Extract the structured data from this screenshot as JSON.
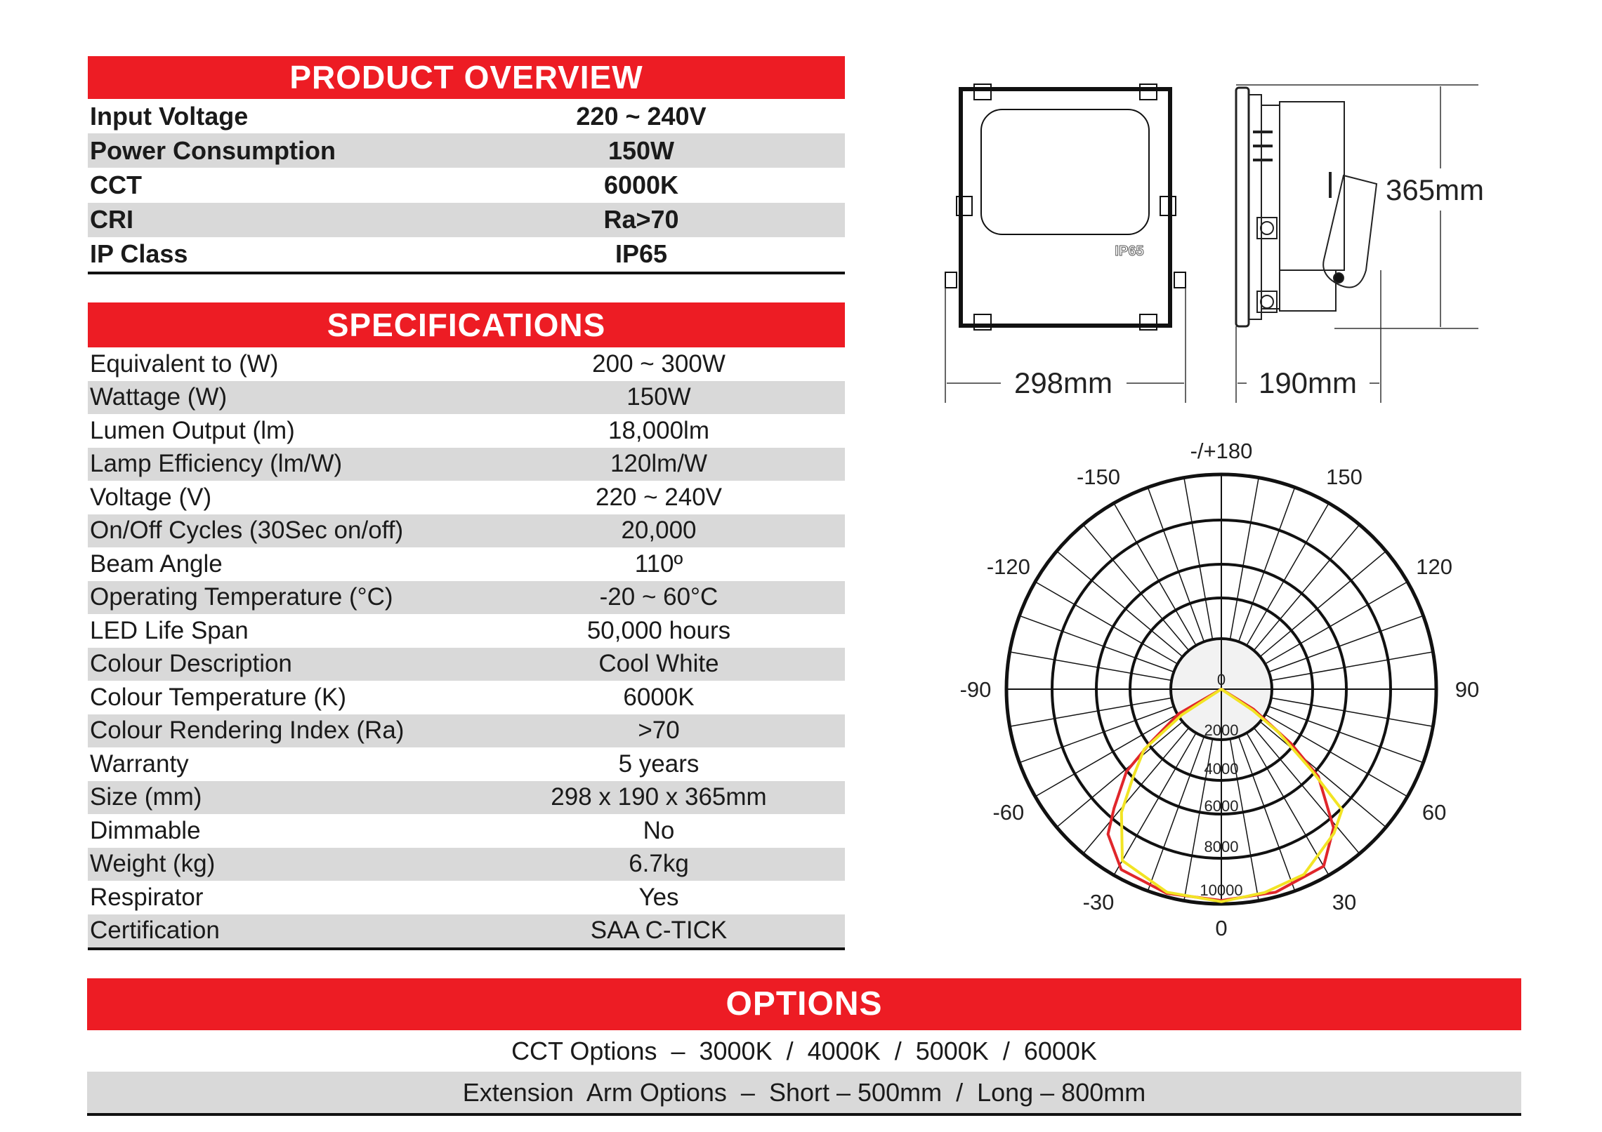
{
  "overview": {
    "title": "PRODUCT OVERVIEW",
    "rows": [
      {
        "label": "Input Voltage",
        "value": "220 ~ 240V"
      },
      {
        "label": "Power Consumption",
        "value": "150W"
      },
      {
        "label": "CCT",
        "value": "6000K"
      },
      {
        "label": "CRI",
        "value": "Ra>70"
      },
      {
        "label": "IP Class",
        "value": "IP65"
      }
    ]
  },
  "specifications": {
    "title": "SPECIFICATIONS",
    "rows": [
      {
        "label": "Equivalent to (W)",
        "value": "200 ~ 300W"
      },
      {
        "label": "Wattage (W)",
        "value": "150W"
      },
      {
        "label": "Lumen Output (lm)",
        "value": "18,000lm"
      },
      {
        "label": "Lamp Efficiency (lm/W)",
        "value": "120lm/W"
      },
      {
        "label": "Voltage (V)",
        "value": "220 ~ 240V"
      },
      {
        "label": "On/Off Cycles (30Sec on/off)",
        "value": "20,000"
      },
      {
        "label": "Beam Angle",
        "value": "110º"
      },
      {
        "label": "Operating Temperature (°C)",
        "value": "-20 ~ 60°C"
      },
      {
        "label": "LED Life Span",
        "value": "50,000 hours"
      },
      {
        "label": "Colour Description",
        "value": "Cool White"
      },
      {
        "label": "Colour Temperature (K)",
        "value": "6000K"
      },
      {
        "label": "Colour Rendering Index (Ra)",
        "value": ">70"
      },
      {
        "label": "Warranty",
        "value": "5 years"
      },
      {
        "label": "Size (mm)",
        "value": "298 x 190 x 365mm"
      },
      {
        "label": "Dimmable",
        "value": "No"
      },
      {
        "label": "Weight (kg)",
        "value": "6.7kg"
      },
      {
        "label": "Respirator",
        "value": "Yes"
      },
      {
        "label": "Certification",
        "value": "SAA  C-TICK"
      }
    ]
  },
  "options": {
    "title": "OPTIONS",
    "rows": [
      "CCT Options  –  3000K  /  4000K  /  5000K  /  6000K",
      "Extension  Arm Options  –  Short – 500mm  /  Long – 800mm"
    ]
  },
  "drawing": {
    "width": "298mm",
    "depth": "190mm",
    "height": "365mm",
    "badge": "IP65"
  },
  "colors": {
    "accent": "#ed1c24",
    "row_alt": "#d9d9d9",
    "curve_red": "#e0262b",
    "curve_yellow": "#f2e424"
  },
  "chart_data": {
    "type": "polar",
    "angle_labels": [
      {
        "angle": 180,
        "text": "-/+180"
      },
      {
        "angle": -150,
        "text": "-150"
      },
      {
        "angle": 150,
        "text": "150"
      },
      {
        "angle": -120,
        "text": "-120"
      },
      {
        "angle": 120,
        "text": "120"
      },
      {
        "angle": -90,
        "text": "-90"
      },
      {
        "angle": 90,
        "text": "90"
      },
      {
        "angle": -60,
        "text": "-60"
      },
      {
        "angle": 60,
        "text": "60"
      },
      {
        "angle": -30,
        "text": "-30"
      },
      {
        "angle": 30,
        "text": "30"
      },
      {
        "angle": 0,
        "text": "0"
      }
    ],
    "radial_ticks": [
      "0",
      "2000",
      "4000",
      "6000",
      "8000",
      "10000"
    ],
    "radial_values": [
      0,
      2000,
      4000,
      6000,
      8000,
      10000
    ],
    "spoke_step_deg": 10,
    "series": [
      {
        "color": "#e0262b",
        "points": [
          [
            -62,
            0
          ],
          [
            -60,
            1950
          ],
          [
            -53,
            3860
          ],
          [
            -49,
            6030
          ],
          [
            -42,
            7600
          ],
          [
            -38,
            8650
          ],
          [
            -29,
            9630
          ],
          [
            -15,
            9850
          ],
          [
            0,
            9850
          ],
          [
            15,
            9800
          ],
          [
            30,
            9550
          ],
          [
            39,
            8400
          ],
          [
            48,
            6250
          ],
          [
            52,
            3860
          ],
          [
            58,
            1500
          ],
          [
            62,
            0
          ]
        ]
      },
      {
        "color": "#f2e424",
        "points": [
          [
            -60,
            0
          ],
          [
            -57,
            1860
          ],
          [
            -52,
            4400
          ],
          [
            -45,
            6000
          ],
          [
            -39,
            7520
          ],
          [
            -30,
            9260
          ],
          [
            -15,
            9800
          ],
          [
            0,
            9900
          ],
          [
            12,
            9700
          ],
          [
            24,
            9480
          ],
          [
            38,
            8600
          ],
          [
            45,
            8060
          ],
          [
            48,
            5800
          ],
          [
            53,
            3000
          ],
          [
            56,
            1500
          ],
          [
            60,
            0
          ]
        ]
      }
    ]
  }
}
